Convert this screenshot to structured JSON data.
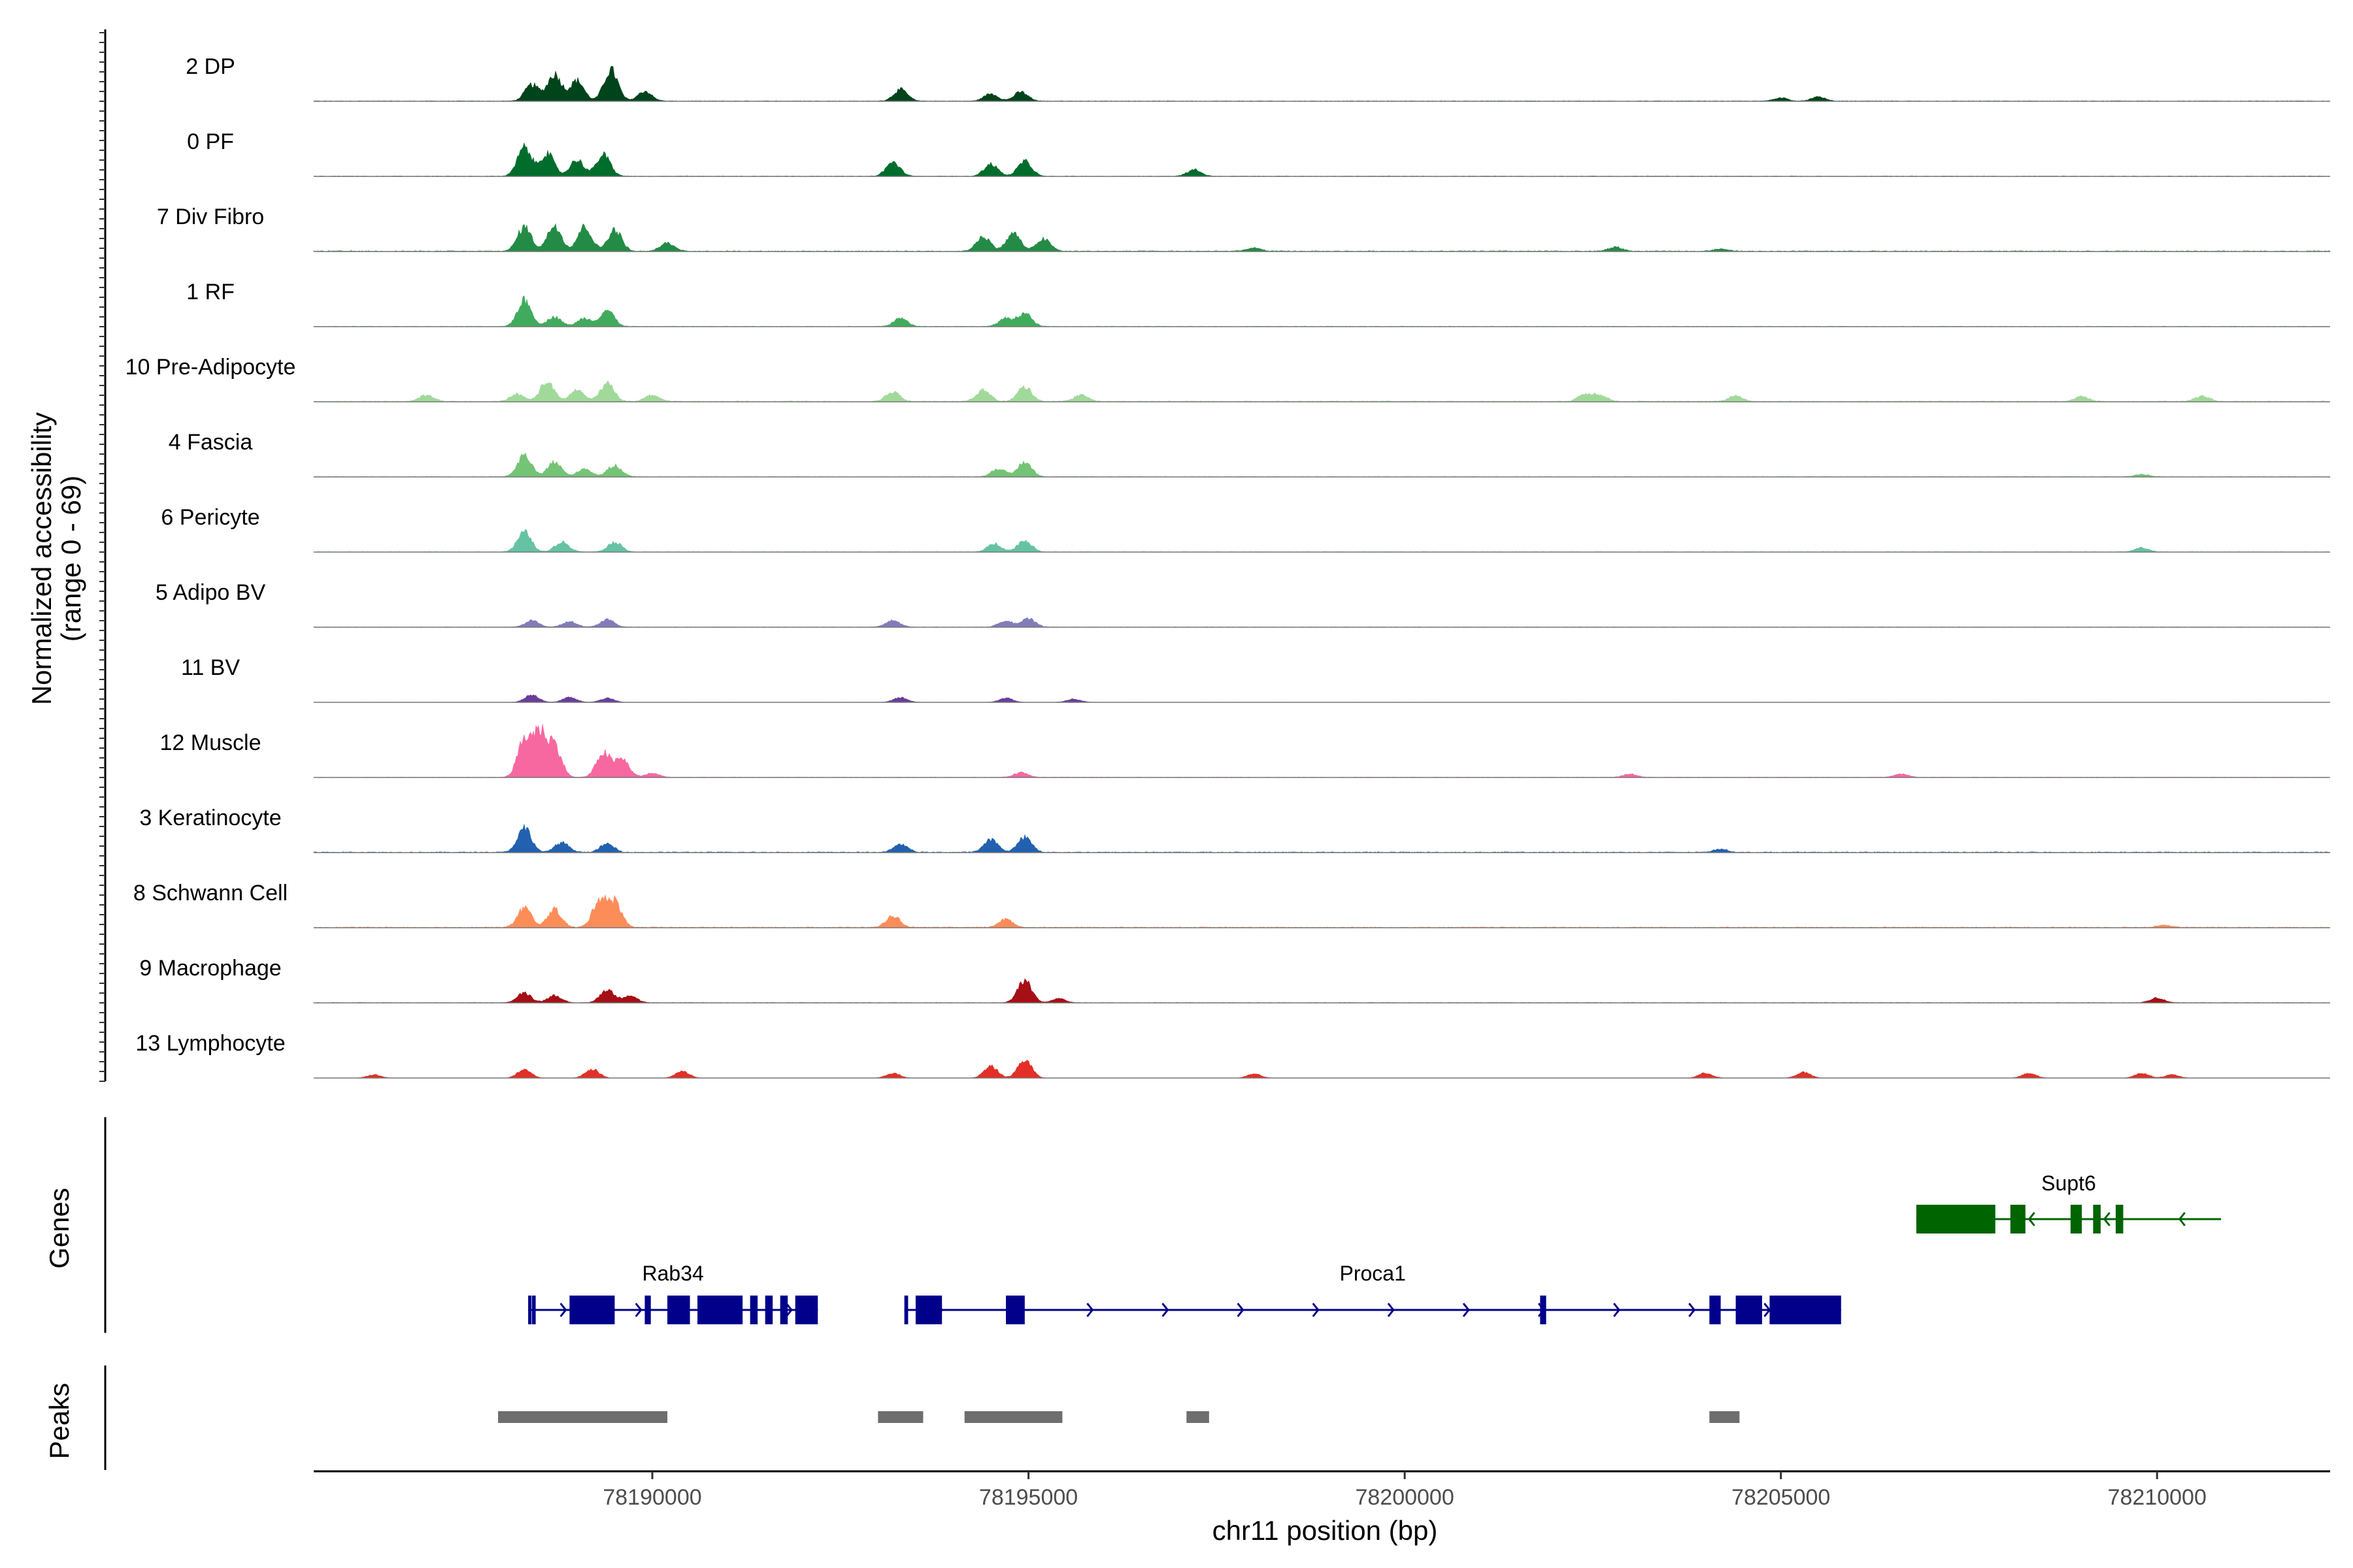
{
  "chart_data": {
    "type": "area",
    "chromosome": "chr11",
    "xlabel": "chr11 position (bp)",
    "ylabel": "Normalized accessibility",
    "ylabel_range": "(range 0 - 69)",
    "xlim": [
      78185500,
      78212300
    ],
    "x_ticks": [
      78190000,
      78195000,
      78200000,
      78205000,
      78210000
    ],
    "x_tick_labels": [
      "78190000",
      "78195000",
      "78200000",
      "78205000",
      "78210000"
    ],
    "y_range": [
      0,
      69
    ],
    "gene_panel_label": "Genes",
    "peak_panel_label": "Peaks",
    "tracks": [
      {
        "name": "2 DP",
        "color": "#00441b",
        "bg": 0.6,
        "peaks": [
          [
            78188400,
            20
          ],
          [
            78188700,
            33
          ],
          [
            78189000,
            25
          ],
          [
            78189450,
            38
          ],
          [
            78189900,
            12
          ],
          [
            78193300,
            14
          ],
          [
            78194500,
            9
          ],
          [
            78194900,
            11
          ],
          [
            78205000,
            4
          ],
          [
            78205500,
            5
          ]
        ]
      },
      {
        "name": "0 PF",
        "color": "#006d2c",
        "bg": 0.6,
        "peaks": [
          [
            78188300,
            35
          ],
          [
            78188600,
            28
          ],
          [
            78189000,
            20
          ],
          [
            78189350,
            26
          ],
          [
            78193200,
            17
          ],
          [
            78194500,
            15
          ],
          [
            78194950,
            18
          ],
          [
            78197200,
            8
          ]
        ]
      },
      {
        "name": "7 Div Fibro",
        "color": "#238b45",
        "bg": 1.0,
        "peaks": [
          [
            78188300,
            30
          ],
          [
            78188700,
            32
          ],
          [
            78189100,
            30
          ],
          [
            78189500,
            26
          ],
          [
            78190200,
            10
          ],
          [
            78194400,
            18
          ],
          [
            78194800,
            22
          ],
          [
            78195200,
            15
          ],
          [
            78198000,
            4
          ],
          [
            78202800,
            5
          ],
          [
            78204200,
            3
          ]
        ]
      },
      {
        "name": "1 RF",
        "color": "#41ab5d",
        "bg": 0.6,
        "peaks": [
          [
            78188300,
            32
          ],
          [
            78188700,
            12
          ],
          [
            78189100,
            10
          ],
          [
            78189400,
            20
          ],
          [
            78193300,
            10
          ],
          [
            78194700,
            10
          ],
          [
            78194950,
            16
          ]
        ]
      },
      {
        "name": "10 Pre-Adipocyte",
        "color": "#a1d99b",
        "bg": 1.0,
        "peaks": [
          [
            78187000,
            8
          ],
          [
            78188200,
            9
          ],
          [
            78188600,
            24
          ],
          [
            78189000,
            14
          ],
          [
            78189400,
            22
          ],
          [
            78190000,
            8
          ],
          [
            78193200,
            12
          ],
          [
            78194400,
            14
          ],
          [
            78194950,
            18
          ],
          [
            78195700,
            8
          ],
          [
            78202400,
            9
          ],
          [
            78202600,
            8
          ],
          [
            78204400,
            7
          ],
          [
            78209000,
            6
          ],
          [
            78210600,
            7
          ]
        ]
      },
      {
        "name": "4 Fascia",
        "color": "#74c476",
        "bg": 0.6,
        "peaks": [
          [
            78188300,
            26
          ],
          [
            78188700,
            18
          ],
          [
            78189100,
            10
          ],
          [
            78189500,
            14
          ],
          [
            78194600,
            10
          ],
          [
            78194950,
            18
          ],
          [
            78209800,
            3
          ]
        ]
      },
      {
        "name": "6 Pericyte",
        "color": "#66c2a4",
        "bg": 0.6,
        "peaks": [
          [
            78188300,
            24
          ],
          [
            78188800,
            12
          ],
          [
            78189500,
            12
          ],
          [
            78194550,
            10
          ],
          [
            78194950,
            14
          ],
          [
            78209800,
            5
          ]
        ]
      },
      {
        "name": "5 Adipo BV",
        "color": "#807dba",
        "bg": 0.5,
        "peaks": [
          [
            78188400,
            8
          ],
          [
            78188900,
            7
          ],
          [
            78189400,
            9
          ],
          [
            78193200,
            8
          ],
          [
            78194700,
            8
          ],
          [
            78195000,
            10
          ]
        ]
      },
      {
        "name": "11 BV",
        "color": "#6a3d9a",
        "bg": 0.2,
        "peaks": [
          [
            78188400,
            9
          ],
          [
            78188900,
            6
          ],
          [
            78189400,
            5
          ],
          [
            78193300,
            6
          ],
          [
            78194700,
            5
          ],
          [
            78195600,
            4
          ]
        ]
      },
      {
        "name": "12 Muscle",
        "color": "#f768a1",
        "bg": 0.5,
        "peaks": [
          [
            78188300,
            44
          ],
          [
            78188500,
            52
          ],
          [
            78188700,
            38
          ],
          [
            78189350,
            30
          ],
          [
            78189600,
            22
          ],
          [
            78190000,
            5
          ],
          [
            78194900,
            6
          ],
          [
            78203000,
            4
          ],
          [
            78206600,
            4
          ]
        ]
      },
      {
        "name": "3 Keratinocyte",
        "color": "#2161b0",
        "bg": 1.0,
        "peaks": [
          [
            78188300,
            30
          ],
          [
            78188800,
            12
          ],
          [
            78189400,
            10
          ],
          [
            78193300,
            10
          ],
          [
            78194500,
            16
          ],
          [
            78194950,
            18
          ],
          [
            78204200,
            4
          ]
        ]
      },
      {
        "name": "8 Schwann Cell",
        "color": "#fc8d59",
        "bg": 1.0,
        "peaks": [
          [
            78188300,
            24
          ],
          [
            78188700,
            22
          ],
          [
            78189300,
            34
          ],
          [
            78189500,
            30
          ],
          [
            78193200,
            14
          ],
          [
            78194700,
            10
          ],
          [
            78210100,
            3
          ]
        ]
      },
      {
        "name": "9 Macrophage",
        "color": "#a50f15",
        "bg": 0.5,
        "peaks": [
          [
            78188300,
            12
          ],
          [
            78188700,
            9
          ],
          [
            78189400,
            16
          ],
          [
            78189700,
            9
          ],
          [
            78194950,
            28
          ],
          [
            78195400,
            5
          ],
          [
            78210000,
            6
          ]
        ]
      },
      {
        "name": "13 Lymphocyte",
        "color": "#e32f27",
        "bg": 0.0,
        "peaks": [
          [
            78186300,
            4
          ],
          [
            78188300,
            10
          ],
          [
            78189200,
            11
          ],
          [
            78190400,
            8
          ],
          [
            78193200,
            6
          ],
          [
            78194500,
            14
          ],
          [
            78194950,
            22
          ],
          [
            78198000,
            5
          ],
          [
            78204000,
            6
          ],
          [
            78205300,
            7
          ],
          [
            78208300,
            6
          ],
          [
            78209800,
            6
          ],
          [
            78210200,
            4
          ]
        ]
      }
    ],
    "genes": [
      {
        "name": "Rab34",
        "strand": "+",
        "color": "#00008b",
        "start": 78188350,
        "end": 78192200,
        "exons": [
          [
            78188350,
            78188380
          ],
          [
            78188400,
            78188450
          ],
          [
            78188900,
            78189500
          ],
          [
            78189900,
            78189980
          ],
          [
            78190200,
            78190500
          ],
          [
            78190600,
            78191200
          ],
          [
            78191300,
            78191400
          ],
          [
            78191500,
            78191600
          ],
          [
            78191700,
            78191800
          ],
          [
            78191900,
            78192200
          ]
        ]
      },
      {
        "name": "Proca1",
        "strand": "+",
        "color": "#00008b",
        "start": 78193350,
        "end": 78205800,
        "exons": [
          [
            78193350,
            78193400
          ],
          [
            78193500,
            78193850
          ],
          [
            78194700,
            78194950
          ],
          [
            78201800,
            78201880
          ],
          [
            78204050,
            78204200
          ],
          [
            78204400,
            78204750
          ],
          [
            78204850,
            78205800
          ]
        ]
      },
      {
        "name": "Supt6",
        "strand": "-",
        "color": "#006400",
        "start": 78206800,
        "end": 78210850,
        "exons": [
          [
            78206800,
            78207850
          ],
          [
            78208050,
            78208250
          ],
          [
            78208850,
            78209000
          ],
          [
            78209150,
            78209250
          ],
          [
            78209450,
            78209550
          ]
        ]
      }
    ],
    "peak_regions": [
      [
        78187950,
        78190200
      ],
      [
        78193000,
        78193600
      ],
      [
        78194150,
        78195450
      ],
      [
        78197100,
        78197400
      ],
      [
        78204050,
        78204450
      ]
    ]
  }
}
